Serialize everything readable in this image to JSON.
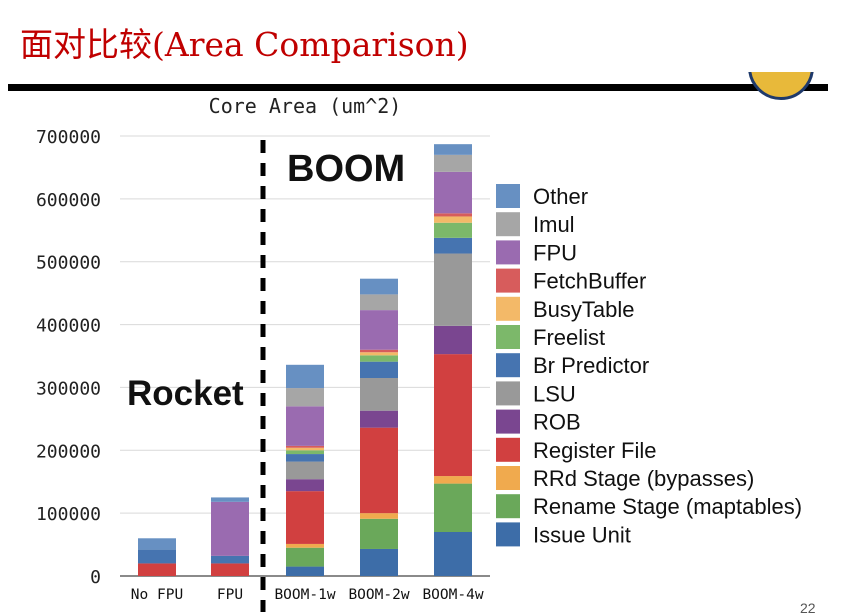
{
  "slide": {
    "title": "面对比较(Area Comparison)",
    "page_number": "22"
  },
  "chart_data": {
    "type": "bar",
    "stacked": true,
    "title": "Core Area (um^2)",
    "xlabel": "",
    "ylabel": "",
    "ylim": [
      0,
      700000
    ],
    "yticks": [
      0,
      100000,
      200000,
      300000,
      400000,
      500000,
      600000,
      700000
    ],
    "ytick_labels": [
      "0",
      "100000",
      "200000",
      "300000",
      "400000",
      "500000",
      "600000",
      "700000"
    ],
    "categories": [
      "No FPU",
      "FPU",
      "BOOM-1w",
      "BOOM-2w",
      "BOOM-4w"
    ],
    "grid": true,
    "legend_position": "right",
    "annotations": [
      {
        "text": "Rocket"
      },
      {
        "text": "BOOM"
      }
    ],
    "series": [
      {
        "name": "Issue Unit",
        "color": "#3d6da8",
        "values": [
          0,
          0,
          15000,
          43000,
          70000
        ]
      },
      {
        "name": "Rename Stage (maptables)",
        "color": "#6aa85a",
        "values": [
          0,
          0,
          30000,
          48000,
          77000
        ]
      },
      {
        "name": "RRd Stage (bypasses)",
        "color": "#f0aa4e",
        "values": [
          0,
          0,
          6000,
          9000,
          12000
        ]
      },
      {
        "name": "Register File",
        "color": "#d14040",
        "values": [
          20000,
          20000,
          84000,
          136000,
          194000
        ]
      },
      {
        "name": "ROB",
        "color": "#7a4690",
        "values": [
          0,
          0,
          19000,
          27000,
          45000
        ]
      },
      {
        "name": "LSU",
        "color": "#999999",
        "values": [
          0,
          0,
          28000,
          52000,
          115000
        ]
      },
      {
        "name": "Br Predictor",
        "color": "#4674b0",
        "values": [
          22000,
          12000,
          12000,
          26000,
          25000
        ]
      },
      {
        "name": "Freelist",
        "color": "#7cb86a",
        "values": [
          0,
          0,
          6000,
          10000,
          24000
        ]
      },
      {
        "name": "BusyTable",
        "color": "#f3b968",
        "values": [
          0,
          0,
          4000,
          5000,
          10000
        ]
      },
      {
        "name": "FetchBuffer",
        "color": "#d75c5c",
        "values": [
          0,
          0,
          3000,
          4000,
          5000
        ]
      },
      {
        "name": "FPU",
        "color": "#9a6bb0",
        "values": [
          0,
          86000,
          63000,
          63000,
          66000
        ]
      },
      {
        "name": "Imul",
        "color": "#a6a6a6",
        "values": [
          0,
          0,
          29000,
          25000,
          27000
        ]
      },
      {
        "name": "Other",
        "color": "#6790c2",
        "values": [
          18000,
          7000,
          37000,
          25000,
          17000
        ]
      }
    ]
  }
}
